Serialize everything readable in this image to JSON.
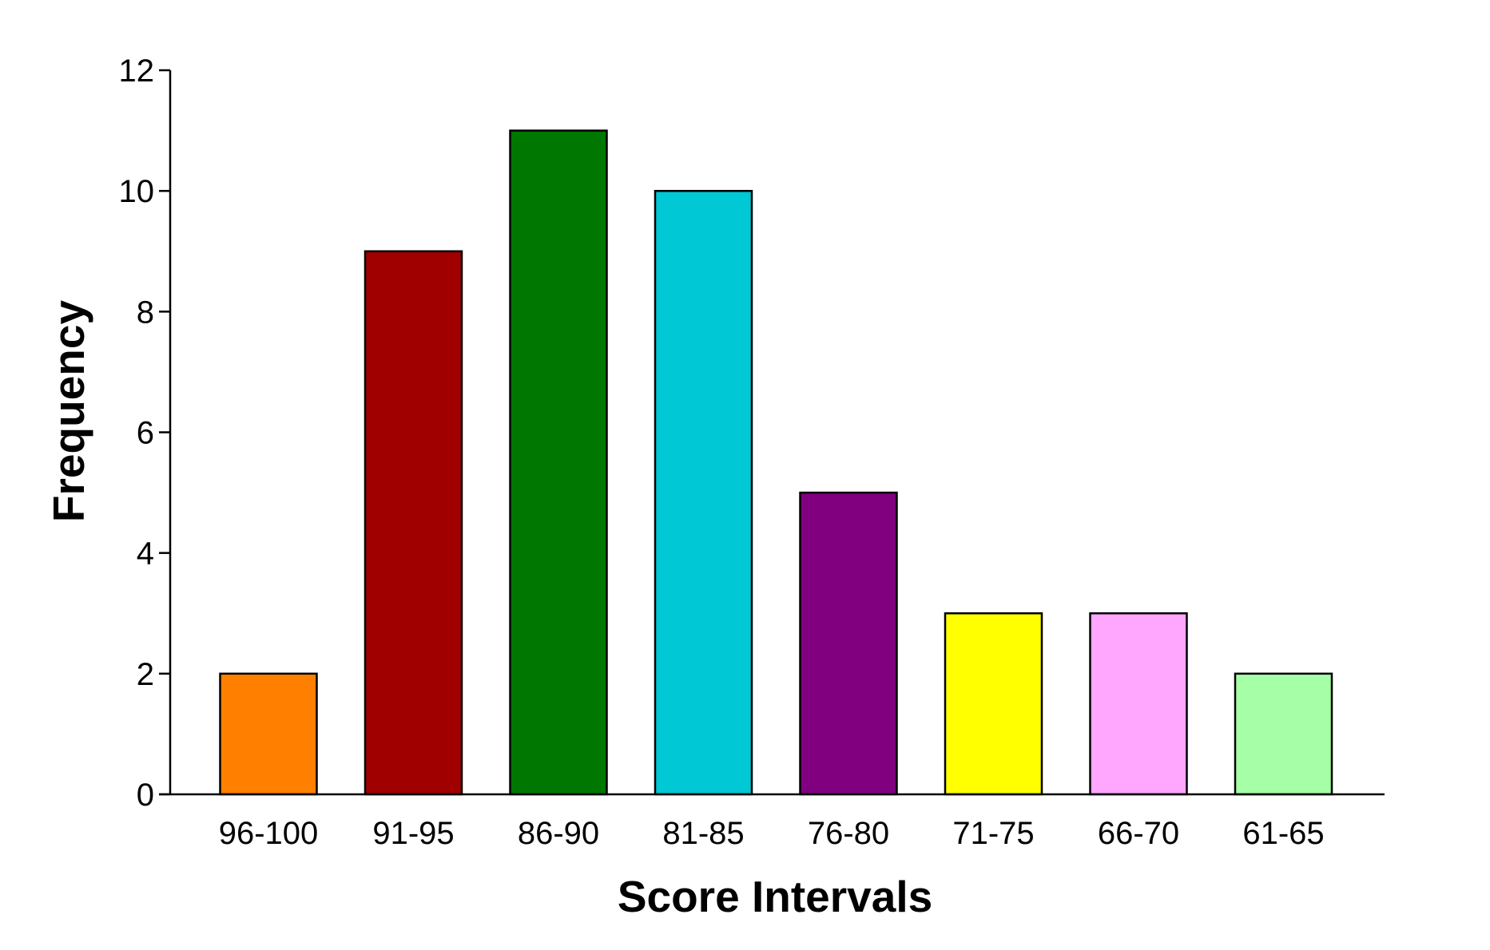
{
  "chart_data": {
    "type": "bar",
    "title": "",
    "xlabel": "Score Intervals",
    "ylabel": "Frequency",
    "categories": [
      "96-100",
      "91-95",
      "86-90",
      "81-85",
      "76-80",
      "71-75",
      "66-70",
      "61-65"
    ],
    "values": [
      2,
      9,
      11,
      10,
      5,
      3,
      3,
      2
    ],
    "colors": [
      "#FF8000",
      "#A00000",
      "#007700",
      "#00C8D4",
      "#800080",
      "#FFFF00",
      "#FFA6FF",
      "#A6FFA6"
    ],
    "ylim": [
      0,
      12
    ],
    "yticks": [
      0,
      2,
      4,
      6,
      8,
      10,
      12
    ],
    "grid": false,
    "legend": "none",
    "bar_outline_color": "#000000",
    "axis_color": "#000000"
  }
}
